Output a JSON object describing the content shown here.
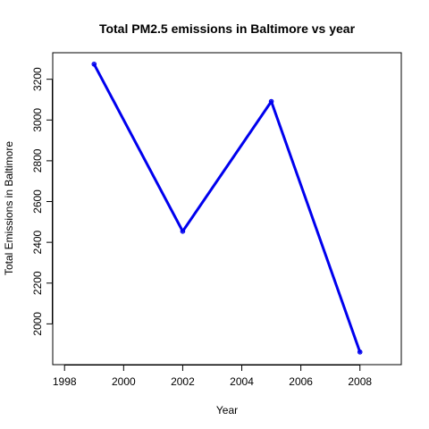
{
  "chart_data": {
    "type": "line",
    "title": "Total PM2.5 emissions in Baltimore vs year",
    "xlabel": "Year",
    "ylabel": "Total Emissions in Baltimore",
    "x": [
      1999,
      2002,
      2005,
      2008
    ],
    "series": [
      {
        "values": [
          3274,
          2454,
          3091,
          1862
        ]
      }
    ],
    "xlim": [
      1997.6,
      2009.4
    ],
    "ylim": [
      1800,
      3330
    ],
    "xticks": [
      1998,
      2000,
      2002,
      2004,
      2006,
      2008
    ],
    "yticks": [
      2000,
      2200,
      2400,
      2600,
      2800,
      3000,
      3200
    ],
    "line_color": "#0000ee",
    "grid": false,
    "legend": "none"
  }
}
